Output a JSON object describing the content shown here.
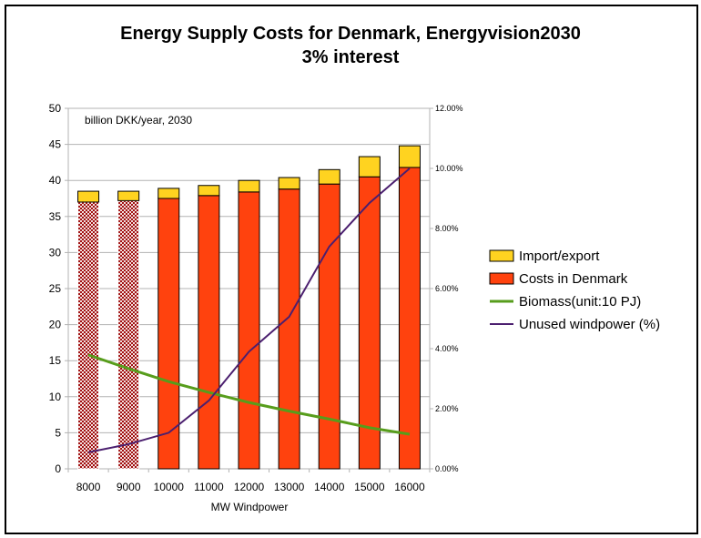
{
  "chart_data": {
    "type": "bar",
    "title": "Energy Supply Costs for Denmark, Energyvision2030",
    "subtitle": "3% interest",
    "annotation": "billion  DKK/year, 2030",
    "xlabel": "MW Windpower",
    "categories": [
      "8000",
      "9000",
      "10000",
      "11000",
      "12000",
      "13000",
      "14000",
      "15000",
      "16000"
    ],
    "ylim": [
      0,
      50
    ],
    "yticks": [
      "0",
      "5",
      "10",
      "15",
      "20",
      "25",
      "30",
      "35",
      "40",
      "45",
      "50"
    ],
    "y2lim": [
      0,
      12
    ],
    "y2ticks": [
      "0.00%",
      "2.00%",
      "4.00%",
      "6.00%",
      "8.00%",
      "10.00%",
      "12.00%"
    ],
    "grid": true,
    "legend_position": "right",
    "stacked": true,
    "series": [
      {
        "name": "Costs in Denmark",
        "kind": "bar",
        "axis": "left",
        "color": "#FF420E",
        "values": [
          37.0,
          37.2,
          37.5,
          37.9,
          38.4,
          38.8,
          39.5,
          40.5,
          41.8
        ],
        "hatched_categories": [
          "8000",
          "9000"
        ]
      },
      {
        "name": "Import/export",
        "kind": "bar",
        "axis": "left",
        "color": "#FFD320",
        "values": [
          1.5,
          1.3,
          1.4,
          1.4,
          1.6,
          1.6,
          2.0,
          2.8,
          3.0
        ]
      },
      {
        "name": "Biomass(unit:10 PJ)",
        "kind": "line",
        "axis": "left",
        "color": "#579D1C",
        "values": [
          15.8,
          13.9,
          12.1,
          10.6,
          9.2,
          8.0,
          6.9,
          5.7,
          4.8
        ]
      },
      {
        "name": "Unused windpower (%)",
        "kind": "line",
        "axis": "right",
        "color": "#4B1F6F",
        "values": [
          0.55,
          0.82,
          1.2,
          2.27,
          3.9,
          5.06,
          7.4,
          8.85,
          10.0
        ]
      }
    ],
    "legend_order": [
      "Import/export",
      "Costs in Denmark",
      "Biomass(unit:10 PJ)",
      "Unused windpower (%)"
    ]
  }
}
